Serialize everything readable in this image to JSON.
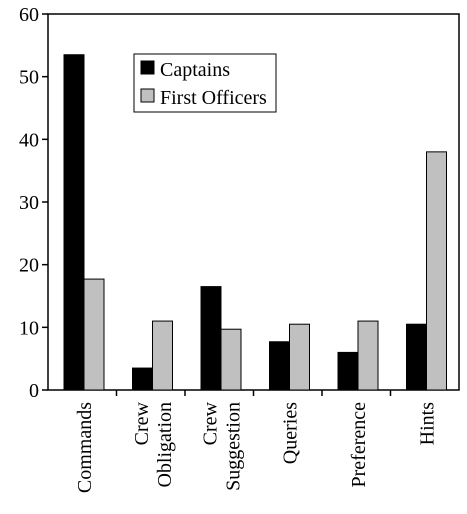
{
  "chart_data": {
    "type": "bar",
    "title": "",
    "xlabel": "",
    "ylabel": "",
    "ylim": [
      0,
      60
    ],
    "yticks": [
      0,
      10,
      20,
      30,
      40,
      50,
      60
    ],
    "grid": false,
    "legend_position": "top-center",
    "categories": [
      [
        "Commands"
      ],
      [
        "Crew",
        "Obligation"
      ],
      [
        "Crew",
        "Suggestion"
      ],
      [
        "Queries"
      ],
      [
        "Preference"
      ],
      [
        "Hints"
      ]
    ],
    "series": [
      {
        "name": "Captains",
        "color": "#000000",
        "values": [
          53.5,
          3.5,
          16.5,
          7.7,
          6.0,
          10.5
        ]
      },
      {
        "name": "First Officers",
        "color": "#c0c0c0",
        "values": [
          17.7,
          11.0,
          9.7,
          10.5,
          11.0,
          38.0
        ]
      }
    ]
  }
}
